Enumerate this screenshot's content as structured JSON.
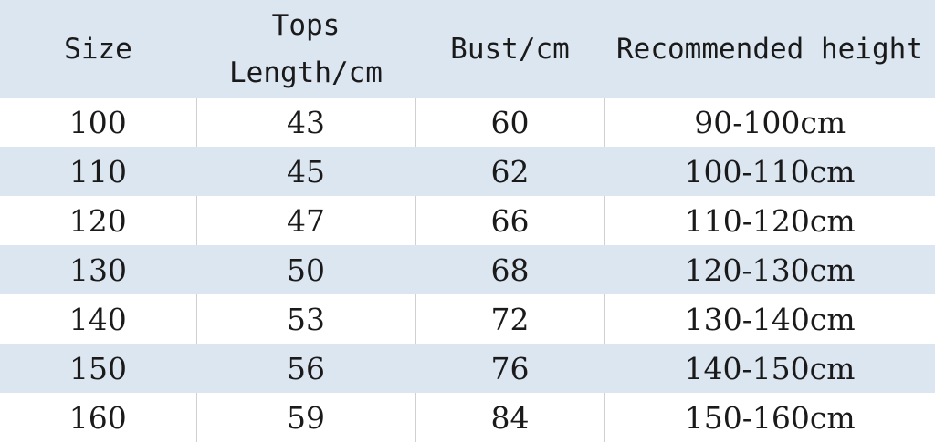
{
  "headers": [
    "Size",
    "Tops Length/cm",
    "Bust/cm",
    "Recommended height"
  ],
  "rows": [
    [
      "100",
      "43",
      "60",
      "90-100cm"
    ],
    [
      "110",
      "45",
      "62",
      "100-110cm"
    ],
    [
      "120",
      "47",
      "66",
      "110-120cm"
    ],
    [
      "130",
      "50",
      "68",
      "120-130cm"
    ],
    [
      "140",
      "53",
      "72",
      "130-140cm"
    ],
    [
      "150",
      "56",
      "76",
      "140-150cm"
    ],
    [
      "160",
      "59",
      "84",
      "150-160cm"
    ]
  ],
  "colors": {
    "band": "#dce6f1",
    "white": "#ffffff"
  }
}
